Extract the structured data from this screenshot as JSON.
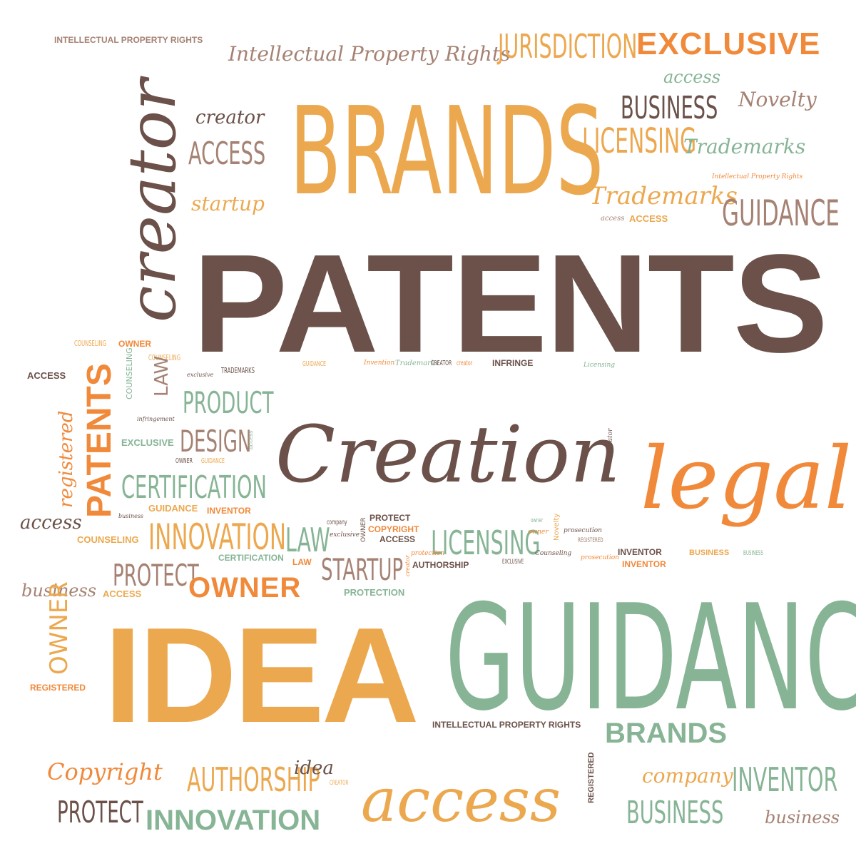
{
  "colors": {
    "brown": "#6b5149",
    "orange": "#f0893a",
    "gold": "#eca84f",
    "green": "#86b495",
    "tan": "#a58273"
  },
  "words": {
    "ipr_top_small": "INTELLECTUAL PROPERTY RIGHTS",
    "ipr_top_script": "Intellectual Property Rights",
    "jurisdiction": "JURISDICTION",
    "exclusive_top": "EXCLUSIVE",
    "access_top_green": "access",
    "novelty": "Novelty",
    "business_top": "BUSINESS",
    "creator_small": "creator",
    "access_caps_top": "ACCESS",
    "brands_big": "BRANDS",
    "licensing_top": "LICENSING",
    "trademarks_green": "Trademarks",
    "ipr_tiny": "Intellectual Property Rights",
    "startup_script": "startup",
    "trademarks_orange": "Trademarks",
    "guidance_top": "GUIDANCE",
    "access_tiny": "access",
    "access_bold_small": "ACCESS",
    "creator_vertical": "creator",
    "patents_big": "PATENTS",
    "counseling_tiny1": "COUNSELING",
    "owner_tiny": "OWNER",
    "counseling_tiny2": "COUNSELING",
    "exclusive_tiny": "exclusive",
    "trademarks_tiny": "TRADEMARKS",
    "guidance_tiny": "GUIDANCE",
    "invention_tiny": "Invention",
    "trademarks_tiny2": "Trademarks",
    "creator_tiny1": "CREATOR",
    "creator_tiny2": "creator",
    "infringe": "INFRINGE",
    "licensing_tiny": "Licensing",
    "access_left": "ACCESS",
    "law_vertical": "LAW",
    "counseling_vertical": "COUNSELING",
    "patents_vertical": "PATENTS",
    "registered_vertical": "registered",
    "product": "PRODUCT",
    "infringement_tiny": "infringement",
    "exclusive_green": "EXCLUSIVE",
    "design": "DESIGN",
    "access_vertical_tiny": "access",
    "owner_small": "OWNER",
    "guidance_small": "GUIDANCE",
    "certification_mid": "CERTIFICATION",
    "creation": "Creation",
    "creator_vertical_tiny": "creator",
    "access_vertical_tiny2": "access",
    "legal": "legal",
    "guidance_bold_small": "GUIDANCE",
    "inventor_small": "INVENTOR",
    "business_tiny": "business",
    "access_left_script": "access",
    "counseling_bold": "COUNSELING",
    "innovation_mid": "INNOVATION",
    "law_mid": "LAW",
    "company_tiny": "company",
    "exclusive_tiny2": "exclusive",
    "owner_vertical_tiny": "OWNER",
    "protect_small": "PROTECT",
    "copyright_small": "COPYRIGHT",
    "access_bold_mid": "ACCESS",
    "licensing_mid": "LICENSING",
    "owner_tiny2": "owner",
    "owner_script_tiny": "owner",
    "novelty_vertical_tiny": "Novelty",
    "prosecution_tiny": "prosecution",
    "registered_tiny": "REGISTERED",
    "inventor_brown": "INVENTOR",
    "inventor_orange": "INVENTOR",
    "business_bold_orange": "BUSINESS",
    "business_tiny_right": "BUSINESS",
    "certification_bold": "CERTIFICATION",
    "law_bold": "LAW",
    "startup_mid": "STARTUP",
    "creator_vertical_tiny2": "creator",
    "protection_tiny": "protection",
    "authorship_bold": "AUTHORSHIP",
    "exclusive_tiny3": "EXCLUSIVE",
    "counseling_script_tiny": "Counseling",
    "prosecution_tiny2": "prosecution",
    "protect_mid": "PROTECT",
    "business_script": "business",
    "access_bold_tiny": "ACCESS",
    "owner_big": "OWNER",
    "protection_bold": "PROTECTION",
    "owner_vertical": "OWNER",
    "registered_bold": "REGISTERED",
    "idea_big": "IDEA",
    "guidance_big": "GUIDANCE",
    "ipr_bottom": "INTELLECTUAL PROPERTY RIGHTS",
    "brands_bold": "BRANDS",
    "registered_vertical_bottom": "REGISTERED",
    "copyright_script": "Copyright",
    "protect_bottom": "PROTECT",
    "authorship_bottom": "AUTHORSHIP",
    "idea_script": "idea",
    "creator_tiny_bottom": "CREATOR",
    "innovation_bold": "INNOVATION",
    "access_big": "access",
    "company_script": "company",
    "inventor_bottom": "INVENTOR",
    "business_bottom": "BUSINESS",
    "business_script_bottom": "business"
  }
}
